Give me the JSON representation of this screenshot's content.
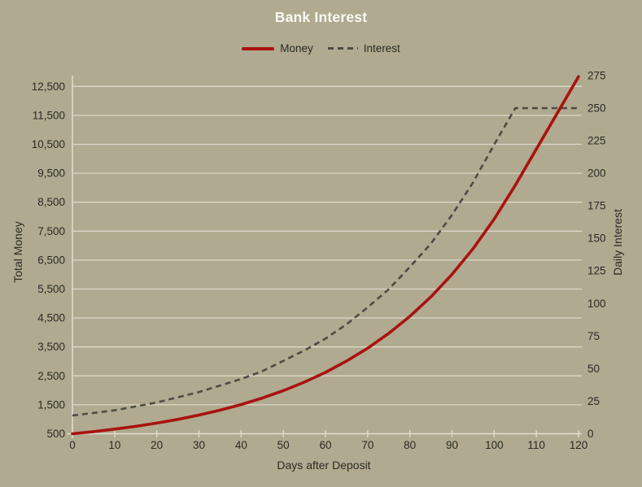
{
  "chart_data": {
    "type": "line",
    "title": "Bank Interest",
    "xlabel": "Days after Deposit",
    "ylabel_left": "Total Money",
    "ylabel_right": "Daily Interest",
    "legend_position": "top",
    "grid": "horizontal-only",
    "x_range": [
      0,
      120
    ],
    "y_left_range": [
      500,
      12500
    ],
    "y_right_range": [
      0,
      275
    ],
    "x_ticks": [
      0,
      10,
      20,
      30,
      40,
      50,
      60,
      70,
      80,
      90,
      100,
      110,
      120
    ],
    "y_left_ticks": [
      500,
      1500,
      2500,
      3500,
      4500,
      5500,
      6500,
      7500,
      8500,
      9500,
      10500,
      11500,
      12500
    ],
    "y_left_tick_labels": [
      "500",
      "1,500",
      "2,500",
      "3,500",
      "4,500",
      "5,500",
      "6,500",
      "7,500",
      "8,500",
      "9,500",
      "10,500",
      "11,500",
      "12,500"
    ],
    "y_right_ticks": [
      0,
      25,
      50,
      75,
      100,
      125,
      150,
      175,
      200,
      225,
      250,
      275
    ],
    "y_right_tick_labels": [
      "0",
      "25",
      "50",
      "75",
      "100",
      "125",
      "150",
      "175",
      "200",
      "225",
      "250",
      "275"
    ],
    "x": [
      0,
      5,
      10,
      15,
      20,
      25,
      30,
      35,
      40,
      45,
      50,
      55,
      60,
      65,
      70,
      75,
      80,
      85,
      90,
      95,
      100,
      105,
      110,
      115,
      120
    ],
    "series": [
      {
        "name": "Money",
        "axis": "left",
        "style": "solid",
        "color": "#a81310",
        "values": [
          500,
          574,
          659,
          757,
          869,
          997,
          1145,
          1315,
          1509,
          1733,
          1989,
          2284,
          2622,
          3011,
          3456,
          3968,
          4556,
          5230,
          6005,
          6894,
          7915,
          9086,
          10336,
          11586,
          12836
        ]
      },
      {
        "name": "Interest",
        "axis": "right",
        "style": "dashed",
        "color": "#4d4c44",
        "values": [
          14,
          16,
          18,
          21,
          24,
          28,
          32,
          37,
          42,
          48,
          56,
          64,
          73,
          84,
          97,
          111,
          128,
          146,
          168,
          193,
          222,
          250,
          250,
          250,
          250
        ]
      }
    ]
  },
  "colors": {
    "background": "#b0aa90",
    "grid": "#dcd8c9",
    "axis": "#e0dccd",
    "text": "#2b2a24",
    "title": "#fafaf4"
  }
}
